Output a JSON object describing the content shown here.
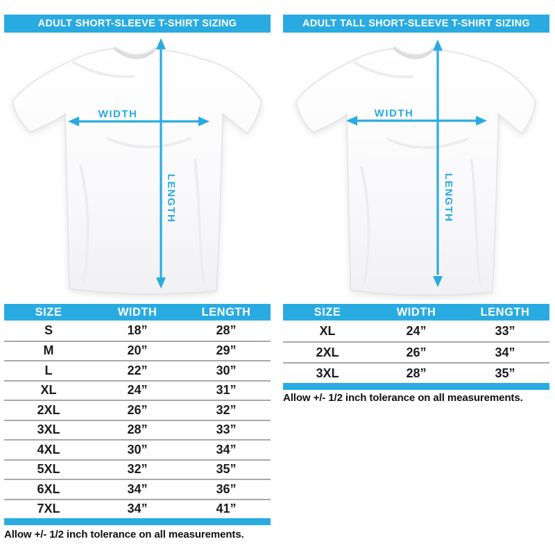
{
  "accent_color": "#29abe2",
  "panels": [
    {
      "title": "ADULT SHORT-SLEEVE T-SHIRT SIZING",
      "diagram": {
        "width_label": "WIDTH",
        "length_label": "LENGTH"
      },
      "table": {
        "headers": [
          "SIZE",
          "WIDTH",
          "LENGTH"
        ],
        "rows": [
          [
            "S",
            "18”",
            "28”"
          ],
          [
            "M",
            "20”",
            "29”"
          ],
          [
            "L",
            "22”",
            "30”"
          ],
          [
            "XL",
            "24”",
            "31”"
          ],
          [
            "2XL",
            "26”",
            "32”"
          ],
          [
            "3XL",
            "28”",
            "33”"
          ],
          [
            "4XL",
            "30”",
            "34”"
          ],
          [
            "5XL",
            "32”",
            "35”"
          ],
          [
            "6XL",
            "34”",
            "36”"
          ],
          [
            "7XL",
            "34”",
            "41”"
          ]
        ]
      },
      "tolerance_note": "Allow +/- 1/2 inch tolerance on all measurements."
    },
    {
      "title": "ADULT TALL SHORT-SLEEVE T-SHIRT SIZING",
      "diagram": {
        "width_label": "WIDTH",
        "length_label": "LENGTH"
      },
      "table": {
        "headers": [
          "SIZE",
          "WIDTH",
          "LENGTH"
        ],
        "rows": [
          [
            "XL",
            "24”",
            "33”"
          ],
          [
            "2XL",
            "26”",
            "34”"
          ],
          [
            "3XL",
            "28”",
            "35”"
          ]
        ]
      },
      "tolerance_note": "Allow +/- 1/2 inch tolerance on all measurements."
    }
  ]
}
